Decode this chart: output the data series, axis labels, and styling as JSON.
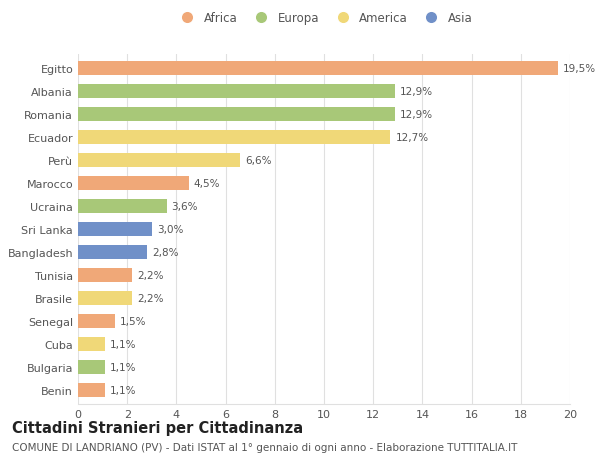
{
  "countries": [
    "Egitto",
    "Albania",
    "Romania",
    "Ecuador",
    "Perù",
    "Marocco",
    "Ucraina",
    "Sri Lanka",
    "Bangladesh",
    "Tunisia",
    "Brasile",
    "Senegal",
    "Cuba",
    "Bulgaria",
    "Benin"
  ],
  "values": [
    19.5,
    12.9,
    12.9,
    12.7,
    6.6,
    4.5,
    3.6,
    3.0,
    2.8,
    2.2,
    2.2,
    1.5,
    1.1,
    1.1,
    1.1
  ],
  "labels": [
    "19,5%",
    "12,9%",
    "12,9%",
    "12,7%",
    "6,6%",
    "4,5%",
    "3,6%",
    "3,0%",
    "2,8%",
    "2,2%",
    "2,2%",
    "1,5%",
    "1,1%",
    "1,1%",
    "1,1%"
  ],
  "continents": [
    "Africa",
    "Europa",
    "Europa",
    "America",
    "America",
    "Africa",
    "Europa",
    "Asia",
    "Asia",
    "Africa",
    "America",
    "Africa",
    "America",
    "Europa",
    "Africa"
  ],
  "continent_colors": {
    "Africa": "#F0A878",
    "Europa": "#A8C878",
    "America": "#F0D878",
    "Asia": "#7090C8"
  },
  "legend_order": [
    "Africa",
    "Europa",
    "America",
    "Asia"
  ],
  "title": "Cittadini Stranieri per Cittadinanza",
  "subtitle": "COMUNE DI LANDRIANO (PV) - Dati ISTAT al 1° gennaio di ogni anno - Elaborazione TUTTITALIA.IT",
  "xlim": [
    0,
    20
  ],
  "xticks": [
    0,
    2,
    4,
    6,
    8,
    10,
    12,
    14,
    16,
    18,
    20
  ],
  "bg_color": "#ffffff",
  "grid_color": "#e0e0e0",
  "bar_height": 0.6,
  "title_fontsize": 10.5,
  "subtitle_fontsize": 7.5,
  "label_fontsize": 7.5,
  "ytick_fontsize": 8,
  "xtick_fontsize": 8,
  "legend_fontsize": 8.5
}
